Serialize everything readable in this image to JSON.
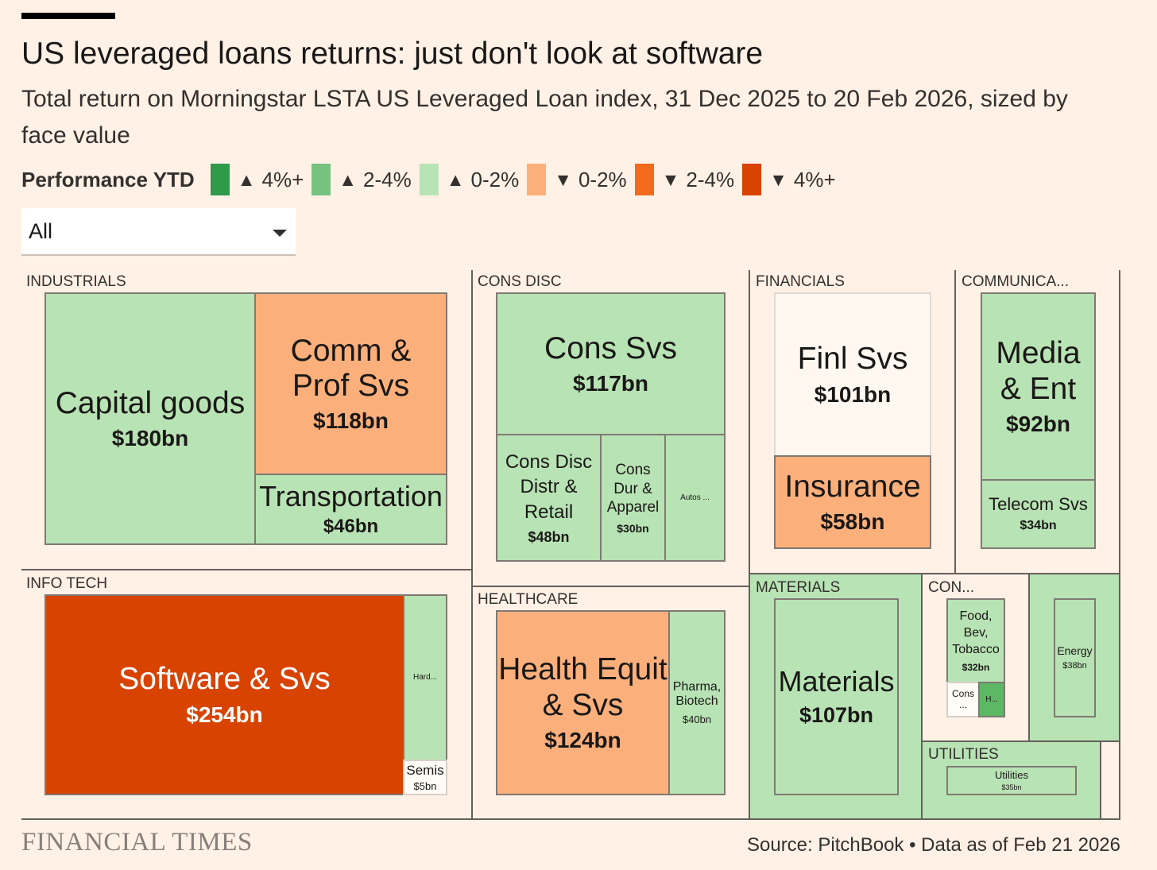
{
  "title": "US leveraged loans returns: just don't look at software",
  "subtitle": "Total return on Morningstar LSTA US Leveraged Loan index, 31 Dec 2025 to 20 Feb 2026, sized by face value",
  "legend": {
    "label": "Performance YTD",
    "items": [
      {
        "arrow": "▲",
        "text": "4%+",
        "color": "#2e9a4a"
      },
      {
        "arrow": "▲",
        "text": "2-4%",
        "color": "#77c27f"
      },
      {
        "arrow": "▲",
        "text": "0-2%",
        "color": "#b8e3b4"
      },
      {
        "arrow": "▼",
        "text": "0-2%",
        "color": "#fbb07c"
      },
      {
        "arrow": "▼",
        "text": "2-4%",
        "color": "#f26b1d"
      },
      {
        "arrow": "▼",
        "text": "4%+",
        "color": "#d84300"
      }
    ]
  },
  "dropdown": {
    "value": "All"
  },
  "sectors": {
    "industrials": "INDUSTRIALS",
    "info_tech": "INFO TECH",
    "cons_disc": "CONS DISC",
    "healthcare": "HEALTHCARE",
    "financials": "FINANCIALS",
    "materials": "MATERIALS",
    "communications": "COMMUNICA...",
    "cons_staples": "CON...",
    "utilities": "UTILITIES"
  },
  "chart_data": {
    "type": "treemap",
    "size_unit": "face value ($bn)",
    "groups": [
      {
        "sector": "INDUSTRIALS",
        "items": [
          {
            "name": "Capital goods",
            "value_label": "$180bn",
            "value": 180,
            "performance": "▲ 0-2%",
            "color": "#b8e3b4"
          },
          {
            "name": "Comm & Prof Svs",
            "value_label": "$118bn",
            "value": 118,
            "performance": "▼ 0-2%",
            "color": "#fbb07c"
          },
          {
            "name": "Transportation",
            "value_label": "$46bn",
            "value": 46,
            "performance": "▲ 0-2%",
            "color": "#b8e3b4"
          }
        ]
      },
      {
        "sector": "INFO TECH",
        "items": [
          {
            "name": "Software & Svs",
            "value_label": "$254bn",
            "value": 254,
            "performance": "▼ 4%+",
            "color": "#d84300"
          },
          {
            "name": "Hard...",
            "value_label": "",
            "value": null,
            "performance": "▲ 0-2%",
            "color": "#b8e3b4"
          },
          {
            "name": "Semis",
            "value_label": "$5bn",
            "value": 5,
            "performance": "",
            "color": "#fffbf6"
          }
        ]
      },
      {
        "sector": "CONS DISC",
        "items": [
          {
            "name": "Cons Svs",
            "value_label": "$117bn",
            "value": 117,
            "performance": "▲ 0-2%",
            "color": "#b8e3b4"
          },
          {
            "name": "Cons Disc Distr & Retail",
            "value_label": "$48bn",
            "value": 48,
            "performance": "▲ 0-2%",
            "color": "#b8e3b4"
          },
          {
            "name": "Cons Dur & Apparel",
            "value_label": "$30bn",
            "value": 30,
            "performance": "▲ 0-2%",
            "color": "#b8e3b4"
          },
          {
            "name": "Autos ...",
            "value_label": "",
            "value": null,
            "performance": "▲ 0-2%",
            "color": "#b8e3b4"
          }
        ]
      },
      {
        "sector": "HEALTHCARE",
        "items": [
          {
            "name": "Health Equit & Svs",
            "value_label": "$124bn",
            "value": 124,
            "performance": "▼ 0-2%",
            "color": "#fbb07c"
          },
          {
            "name": "Pharma, Biotech",
            "value_label": "$40bn",
            "value": 40,
            "performance": "▲ 0-2%",
            "color": "#b8e3b4"
          }
        ]
      },
      {
        "sector": "FINANCIALS",
        "items": [
          {
            "name": "Finl Svs",
            "value_label": "$101bn",
            "value": 101,
            "performance": "",
            "color": "#fff7f0"
          },
          {
            "name": "Insurance",
            "value_label": "$58bn",
            "value": 58,
            "performance": "▼ 0-2%",
            "color": "#fbb07c"
          }
        ]
      },
      {
        "sector": "COMMUNICA...",
        "items": [
          {
            "name": "Media & Ent",
            "value_label": "$92bn",
            "value": 92,
            "performance": "▲ 0-2%",
            "color": "#b8e3b4"
          },
          {
            "name": "Telecom Svs",
            "value_label": "$34bn",
            "value": 34,
            "performance": "▲ 0-2%",
            "color": "#b8e3b4"
          }
        ]
      },
      {
        "sector": "MATERIALS",
        "items": [
          {
            "name": "Materials",
            "value_label": "$107bn",
            "value": 107,
            "performance": "▲ 0-2%",
            "color": "#b8e3b4"
          }
        ]
      },
      {
        "sector": "CON...",
        "items": [
          {
            "name": "Food, Bev, Tobacco",
            "value_label": "$32bn",
            "value": 32,
            "performance": "▲ 0-2%",
            "color": "#b8e3b4"
          },
          {
            "name": "Cons ...",
            "value_label": "",
            "value": null,
            "performance": "",
            "color": "#fffbf6"
          },
          {
            "name": "H...",
            "value_label": "",
            "value": null,
            "performance": "▲ 2-4%",
            "color": "#5cb865"
          }
        ]
      },
      {
        "sector": "",
        "items": [
          {
            "name": "Energy",
            "value_label": "$38bn",
            "value": 38,
            "performance": "▲ 0-2%",
            "color": "#b8e3b4"
          }
        ]
      },
      {
        "sector": "UTILITIES",
        "items": [
          {
            "name": "Utilities",
            "value_label": "$35bn",
            "value": 35,
            "performance": "▲ 0-2%",
            "color": "#b8e3b4"
          }
        ]
      }
    ]
  },
  "footer": {
    "brand": "FINANCIAL TIMES",
    "source": "Source: PitchBook • Data as of Feb 21 2026"
  }
}
